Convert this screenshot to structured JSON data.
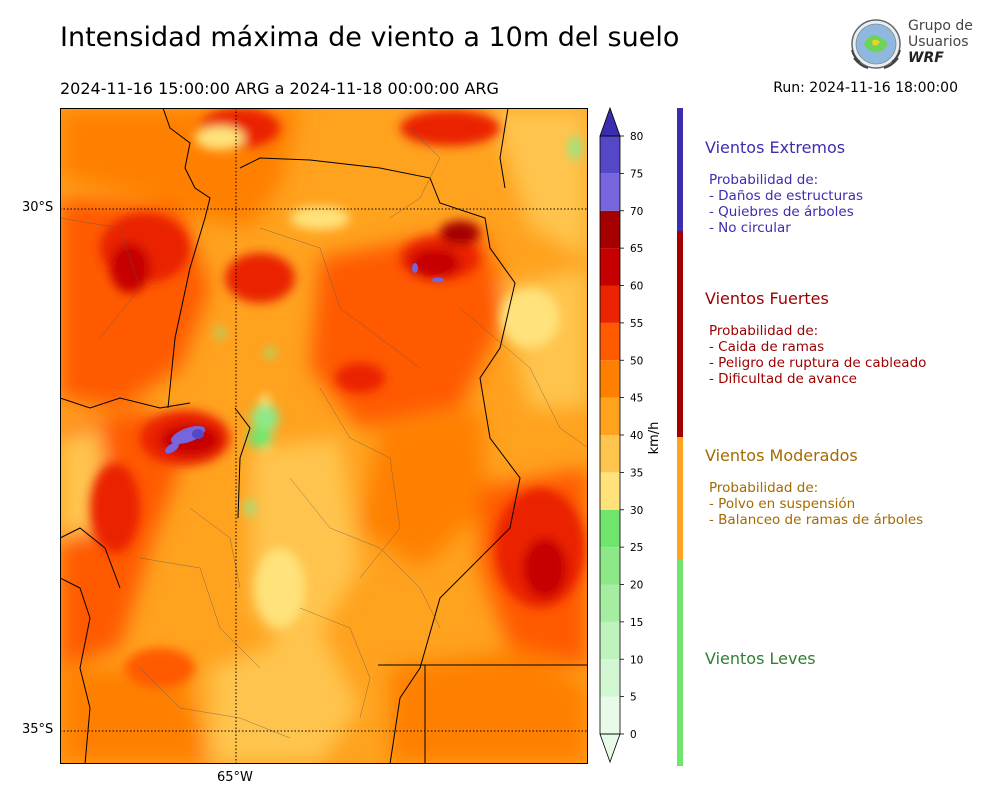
{
  "title": "Intensidad máxima de viento a 10m del suelo",
  "period": "2024-11-16 15:00:00 ARG  a  2024-11-18 00:00:00 ARG",
  "run": "Run: 2024-11-16 18:00:00",
  "logo": {
    "line1": "Grupo de",
    "line2": "Usuarios",
    "line3": "WRF"
  },
  "chart_data": {
    "type": "heatmap",
    "title": "Intensidad máxima de viento a 10m del suelo",
    "variable": "Intensidad máxima de viento a 10m del suelo",
    "units": "km/h",
    "colorbar": {
      "label": "km/h",
      "ticks": [
        "0",
        "5",
        "10",
        "15",
        "20",
        "25",
        "30",
        "35",
        "40",
        "45",
        "50",
        "55",
        "60",
        "65",
        "70",
        "75",
        "80"
      ],
      "levels": [
        0,
        5,
        10,
        15,
        20,
        25,
        30,
        35,
        40,
        45,
        50,
        55,
        60,
        65,
        70,
        75,
        80
      ],
      "colors": [
        "#e8fbe8",
        "#d3f7d3",
        "#bff3bd",
        "#a5eea1",
        "#8de988",
        "#70e56d",
        "#ffe27a",
        "#ffc44d",
        "#ffa21e",
        "#ff8000",
        "#ff5a00",
        "#ea2400",
        "#c60000",
        "#a40000",
        "#7665dd",
        "#5547c8",
        "#3b2db0"
      ],
      "extend": "both"
    },
    "axes": {
      "lat_labels": [
        "30°S",
        "35°S"
      ],
      "lon_labels": [
        "65°W"
      ],
      "lat_range": [
        -35.3,
        -29.1
      ],
      "lon_range": [
        -66.7,
        -61.7
      ],
      "grid": true
    },
    "categories": [
      {
        "name": "Vientos Extremos",
        "range": [
          65,
          80
        ],
        "color": "#3b2db0",
        "lines": [
          "Probabilidad de:",
          "- Daños de estructuras",
          "- Quiebres de árboles",
          "- No circular"
        ]
      },
      {
        "name": "Vientos Fuertes",
        "range": [
          40,
          65
        ],
        "color": "#9b0000",
        "lines": [
          "Probabilidad de:",
          "- Caida de ramas",
          "- Peligro de ruptura de cableado",
          "- Dificultad de avance"
        ]
      },
      {
        "name": "Vientos Moderados",
        "range": [
          25,
          40
        ],
        "color": "#a46a00",
        "lines": [
          "Probabilidad de:",
          "- Polvo en suspensión",
          "- Balanceo de ramas de árboles"
        ]
      },
      {
        "name": "Vientos Leves",
        "range": [
          0,
          25
        ],
        "color": "#2f7f2f",
        "lines": []
      }
    ],
    "wind_field_samples": [
      {
        "lat": -29.3,
        "lon": -64.5,
        "value": 52
      },
      {
        "lat": -30.4,
        "lon": -66.1,
        "value": 55
      },
      {
        "lat": -30.5,
        "lon": -63.2,
        "value": 62
      },
      {
        "lat": -30.6,
        "lon": -62.9,
        "value": 68
      },
      {
        "lat": -31.2,
        "lon": -64.3,
        "value": 45
      },
      {
        "lat": -31.6,
        "lon": -65.0,
        "value": 22
      },
      {
        "lat": -32.2,
        "lon": -65.2,
        "value": 18
      },
      {
        "lat": -32.1,
        "lon": -66.0,
        "value": 67
      },
      {
        "lat": -32.5,
        "lon": -66.3,
        "value": 52
      },
      {
        "lat": -32.7,
        "lon": -64.5,
        "value": 33
      },
      {
        "lat": -33.0,
        "lon": -62.3,
        "value": 55
      },
      {
        "lat": -33.6,
        "lon": -63.4,
        "value": 42
      },
      {
        "lat": -34.2,
        "lon": -65.5,
        "value": 38
      },
      {
        "lat": -34.5,
        "lon": -62.7,
        "value": 45
      },
      {
        "lat": -31.0,
        "lon": -62.2,
        "value": 30
      }
    ]
  }
}
